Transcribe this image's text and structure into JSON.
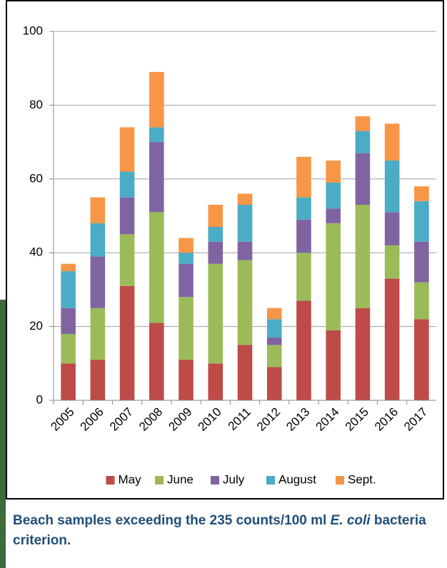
{
  "chart_data": {
    "type": "stacked_bar",
    "caption": [
      "Beach samples exceeding the 235 counts/100 ml ",
      "E. coli",
      " bacteria criterion."
    ],
    "categories": [
      "2005",
      "2006",
      "2007",
      "2008",
      "2009",
      "2010",
      "2011",
      "2012",
      "2013",
      "2014",
      "2015",
      "2016",
      "2017"
    ],
    "series": [
      {
        "name": "May",
        "color": "#be4b48",
        "values": [
          10,
          11,
          31,
          21,
          11,
          10,
          15,
          9,
          27,
          19,
          25,
          33,
          22
        ]
      },
      {
        "name": "June",
        "color": "#9bbb59",
        "values": [
          8,
          14,
          14,
          30,
          17,
          27,
          23,
          6,
          13,
          29,
          28,
          9,
          10
        ]
      },
      {
        "name": "July",
        "color": "#8064a2",
        "values": [
          7,
          14,
          10,
          19,
          9,
          6,
          5,
          2,
          9,
          4,
          14,
          9,
          11
        ]
      },
      {
        "name": "August",
        "color": "#4bacc6",
        "values": [
          10,
          9,
          7,
          4,
          3,
          4,
          10,
          5,
          6,
          7,
          6,
          14,
          11
        ]
      },
      {
        "name": "Sept.",
        "color": "#f79646",
        "values": [
          2,
          7,
          12,
          15,
          4,
          6,
          3,
          3,
          11,
          6,
          4,
          10,
          4
        ]
      }
    ],
    "ylim": [
      0,
      100
    ],
    "yticks": [
      0,
      20,
      40,
      60,
      80,
      100
    ],
    "grid": true,
    "legend": "bottom"
  }
}
